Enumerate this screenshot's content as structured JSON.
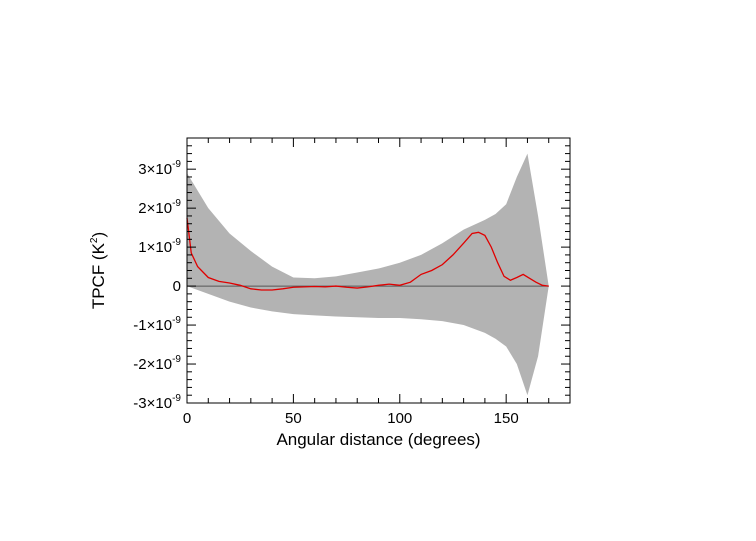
{
  "chart_data": {
    "type": "line",
    "xlabel": "Angular distance (degrees)",
    "ylabel_main": "TPCF (K",
    "ylabel_sup": "2",
    "ylabel_close": ")",
    "xlim": [
      0,
      180
    ],
    "ylim": [
      -3e-09,
      3.8e-09
    ],
    "x_ticks": [
      {
        "value": 0,
        "label": "0"
      },
      {
        "value": 50,
        "label": "50"
      },
      {
        "value": 100,
        "label": "100"
      },
      {
        "value": 150,
        "label": "150"
      }
    ],
    "y_ticks": [
      {
        "value": 3e-09,
        "mant": "3",
        "exp": "-9"
      },
      {
        "value": 2e-09,
        "mant": "2",
        "exp": "-9"
      },
      {
        "value": 1e-09,
        "mant": "1",
        "exp": "-9"
      },
      {
        "value": 0,
        "mant": "0",
        "exp": ""
      },
      {
        "value": -1e-09,
        "mant": "-1",
        "exp": "-9"
      },
      {
        "value": -2e-09,
        "mant": "-2",
        "exp": "-9"
      },
      {
        "value": -3e-09,
        "mant": "-3",
        "exp": "-9"
      }
    ],
    "times_sign": "×10",
    "zero_line": true,
    "band_color": "#b3b3b3",
    "line_color": "#e00000",
    "band": {
      "x": [
        0,
        5,
        10,
        20,
        30,
        40,
        50,
        60,
        70,
        80,
        90,
        100,
        110,
        120,
        130,
        140,
        145,
        150,
        155,
        160,
        165,
        170
      ],
      "upper": [
        2.9e-09,
        2.45e-09,
        2e-09,
        1.35e-09,
        9e-10,
        5e-10,
        2.2e-10,
        2e-10,
        2.5e-10,
        3.5e-10,
        4.5e-10,
        6e-10,
        8e-10,
        1.1e-09,
        1.45e-09,
        1.7e-09,
        1.85e-09,
        2.1e-09,
        2.8e-09,
        3.4e-09,
        1.8e-09,
        0
      ],
      "lower": [
        0,
        -1e-10,
        -2e-10,
        -4e-10,
        -5.5e-10,
        -6.5e-10,
        -7.2e-10,
        -7.5e-10,
        -7.8e-10,
        -8e-10,
        -8.2e-10,
        -8.2e-10,
        -8.5e-10,
        -9e-10,
        -1e-09,
        -1.2e-09,
        -1.35e-09,
        -1.55e-09,
        -2e-09,
        -2.8e-09,
        -1.8e-09,
        0
      ]
    },
    "series": [
      {
        "x": [
          0,
          2,
          5,
          10,
          15,
          20,
          25,
          30,
          35,
          40,
          45,
          50,
          55,
          60,
          65,
          70,
          75,
          80,
          85,
          90,
          95,
          100,
          105,
          110,
          115,
          120,
          125,
          130,
          134,
          137,
          140,
          143,
          146,
          149,
          152,
          155,
          158,
          161,
          164,
          167,
          170
        ],
        "values": [
          1.75e-09,
          8.5e-10,
          5e-10,
          2.2e-10,
          1.2e-10,
          8e-11,
          2e-11,
          -7e-11,
          -1e-10,
          -1e-10,
          -7e-11,
          -3e-11,
          -2e-11,
          -1e-11,
          -2e-11,
          0.0,
          -3e-11,
          -5e-11,
          -2e-11,
          2e-11,
          5e-11,
          2e-11,
          1e-10,
          3e-10,
          4e-10,
          5.5e-10,
          8e-10,
          1.1e-09,
          1.35e-09,
          1.38e-09,
          1.3e-09,
          1e-09,
          6e-10,
          2.5e-10,
          1.5e-10,
          2.2e-10,
          3e-10,
          2e-10,
          1e-10,
          2e-11,
          0.0
        ]
      }
    ]
  }
}
